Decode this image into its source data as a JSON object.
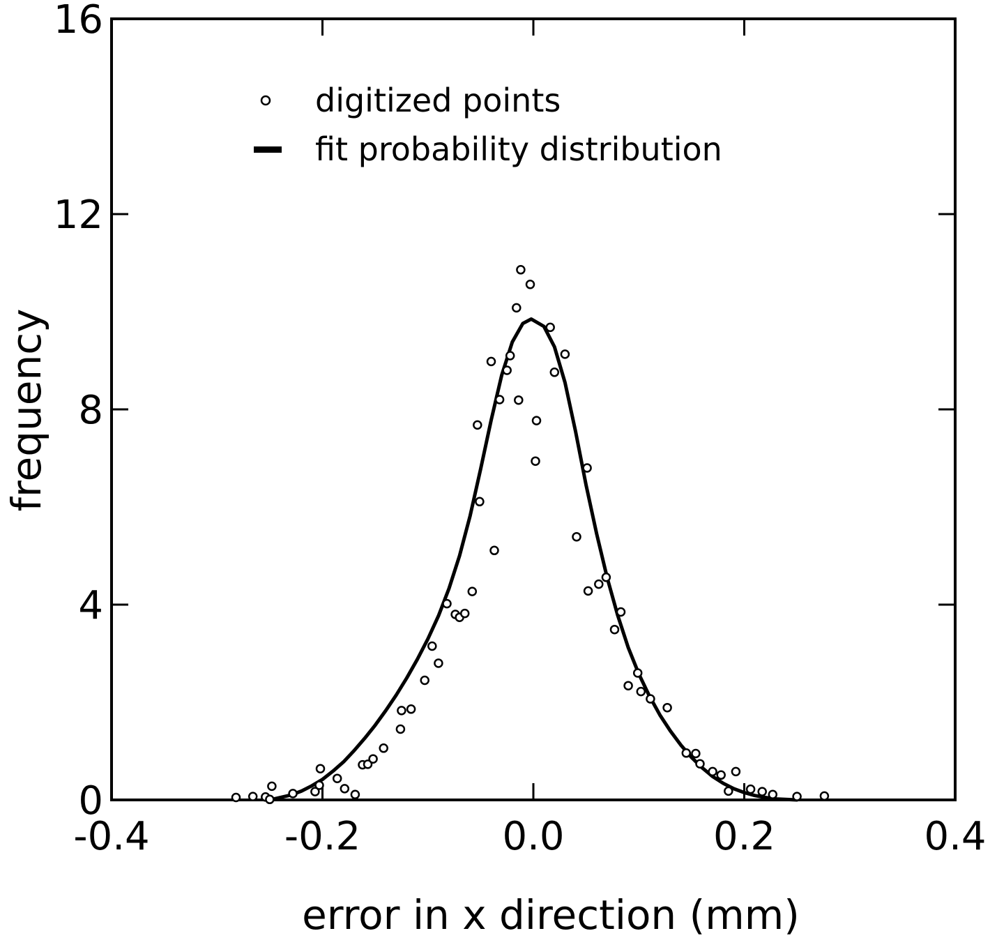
{
  "chart_data": {
    "type": "scatter",
    "xlabel": "error in x direction (mm)",
    "ylabel": "frequency",
    "xlim": [
      -0.4,
      0.4
    ],
    "ylim": [
      0,
      16
    ],
    "x_ticks": [
      -0.4,
      -0.2,
      0.0,
      0.2,
      0.4
    ],
    "x_tick_labels": [
      "-0.4",
      "-0.2",
      "0.0",
      "0.2",
      "0.4"
    ],
    "y_ticks": [
      0,
      4,
      8,
      12,
      16
    ],
    "y_tick_labels": [
      "0",
      "4",
      "8",
      "12",
      "16"
    ],
    "grid": false,
    "legend_position": "top-left",
    "series": [
      {
        "name": "digitized points",
        "kind": "scatter",
        "marker": "open-circle",
        "color": "#000000",
        "points": [
          [
            -0.282,
            0.05
          ],
          [
            -0.266,
            0.07
          ],
          [
            -0.254,
            0.06
          ],
          [
            -0.25,
            0.01
          ],
          [
            -0.248,
            0.28
          ],
          [
            -0.228,
            0.13
          ],
          [
            -0.207,
            0.17
          ],
          [
            -0.203,
            0.3
          ],
          [
            -0.202,
            0.64
          ],
          [
            -0.186,
            0.44
          ],
          [
            -0.179,
            0.23
          ],
          [
            -0.169,
            0.11
          ],
          [
            -0.162,
            0.72
          ],
          [
            -0.157,
            0.73
          ],
          [
            -0.152,
            0.84
          ],
          [
            -0.142,
            1.06
          ],
          [
            -0.126,
            1.45
          ],
          [
            -0.125,
            1.83
          ],
          [
            -0.116,
            1.86
          ],
          [
            -0.103,
            2.45
          ],
          [
            -0.096,
            3.15
          ],
          [
            -0.09,
            2.8
          ],
          [
            -0.082,
            4.02
          ],
          [
            -0.074,
            3.8
          ],
          [
            -0.07,
            3.74
          ],
          [
            -0.065,
            3.82
          ],
          [
            -0.058,
            4.27
          ],
          [
            -0.053,
            7.68
          ],
          [
            -0.051,
            6.11
          ],
          [
            -0.04,
            8.98
          ],
          [
            -0.037,
            5.11
          ],
          [
            -0.032,
            8.2
          ],
          [
            -0.025,
            8.8
          ],
          [
            -0.022,
            9.1
          ],
          [
            -0.016,
            10.08
          ],
          [
            -0.014,
            8.19
          ],
          [
            -0.012,
            10.86
          ],
          [
            -0.003,
            10.56
          ],
          [
            0.002,
            6.94
          ],
          [
            0.003,
            7.77
          ],
          [
            0.016,
            9.68
          ],
          [
            0.02,
            8.76
          ],
          [
            0.03,
            9.13
          ],
          [
            0.051,
            6.8
          ],
          [
            0.052,
            4.28
          ],
          [
            0.041,
            5.39
          ],
          [
            0.062,
            4.42
          ],
          [
            0.069,
            4.56
          ],
          [
            0.077,
            3.49
          ],
          [
            0.083,
            3.85
          ],
          [
            0.09,
            2.34
          ],
          [
            0.099,
            2.6
          ],
          [
            0.102,
            2.22
          ],
          [
            0.111,
            2.07
          ],
          [
            0.127,
            1.89
          ],
          [
            0.145,
            0.96
          ],
          [
            0.154,
            0.95
          ],
          [
            0.158,
            0.74
          ],
          [
            0.17,
            0.58
          ],
          [
            0.178,
            0.51
          ],
          [
            0.185,
            0.18
          ],
          [
            0.192,
            0.58
          ],
          [
            0.206,
            0.22
          ],
          [
            0.217,
            0.17
          ],
          [
            0.227,
            0.11
          ],
          [
            0.25,
            0.07
          ],
          [
            0.276,
            0.08
          ]
        ]
      },
      {
        "name": "fit probability distribution",
        "kind": "line",
        "color": "#000000",
        "points": [
          [
            -0.25,
            0.0
          ],
          [
            -0.24,
            0.05
          ],
          [
            -0.23,
            0.1
          ],
          [
            -0.22,
            0.18
          ],
          [
            -0.21,
            0.29
          ],
          [
            -0.2,
            0.42
          ],
          [
            -0.19,
            0.59
          ],
          [
            -0.18,
            0.78
          ],
          [
            -0.17,
            1.01
          ],
          [
            -0.16,
            1.26
          ],
          [
            -0.15,
            1.53
          ],
          [
            -0.14,
            1.83
          ],
          [
            -0.13,
            2.15
          ],
          [
            -0.12,
            2.5
          ],
          [
            -0.11,
            2.88
          ],
          [
            -0.1,
            3.3
          ],
          [
            -0.09,
            3.77
          ],
          [
            -0.08,
            4.33
          ],
          [
            -0.07,
            5.0
          ],
          [
            -0.06,
            5.82
          ],
          [
            -0.05,
            6.78
          ],
          [
            -0.04,
            7.78
          ],
          [
            -0.03,
            8.7
          ],
          [
            -0.02,
            9.38
          ],
          [
            -0.01,
            9.76
          ],
          [
            -0.002,
            9.85
          ],
          [
            0.01,
            9.7
          ],
          [
            0.02,
            9.28
          ],
          [
            0.03,
            8.55
          ],
          [
            0.04,
            7.55
          ],
          [
            0.05,
            6.45
          ],
          [
            0.06,
            5.45
          ],
          [
            0.07,
            4.55
          ],
          [
            0.08,
            3.78
          ],
          [
            0.09,
            3.12
          ],
          [
            0.1,
            2.58
          ],
          [
            0.11,
            2.13
          ],
          [
            0.12,
            1.74
          ],
          [
            0.13,
            1.41
          ],
          [
            0.14,
            1.12
          ],
          [
            0.15,
            0.87
          ],
          [
            0.16,
            0.66
          ],
          [
            0.17,
            0.48
          ],
          [
            0.18,
            0.34
          ],
          [
            0.19,
            0.23
          ],
          [
            0.2,
            0.15
          ],
          [
            0.21,
            0.09
          ],
          [
            0.22,
            0.05
          ],
          [
            0.23,
            0.02
          ],
          [
            0.25,
            0.0
          ]
        ]
      }
    ]
  }
}
